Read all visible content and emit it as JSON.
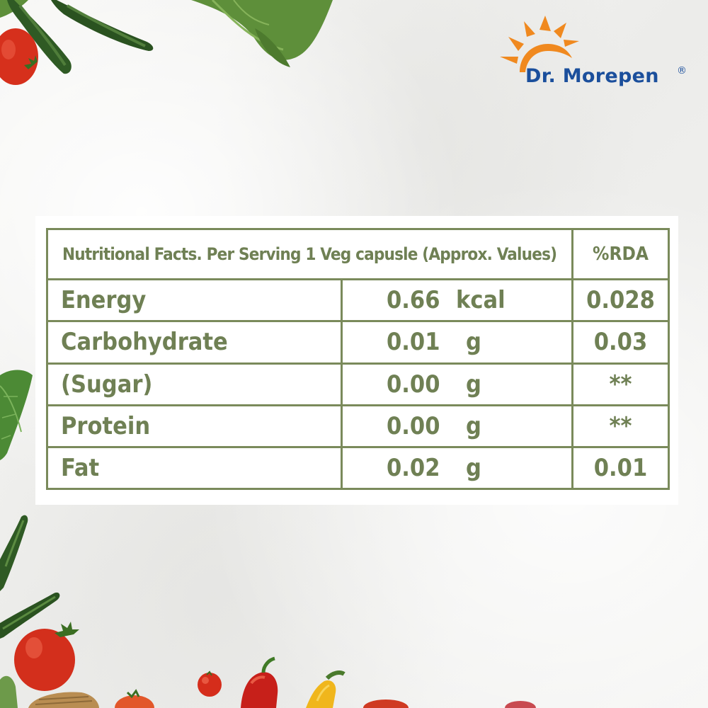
{
  "brand": {
    "name": "Dr. Morepen",
    "registered_mark": "®",
    "colors": {
      "blue": "#1b4f9c",
      "orange": "#f0891f"
    }
  },
  "table": {
    "header": {
      "title": "Nutritional Facts. Per Serving 1 Veg capusle (Approx. Values)",
      "rda_label": "%RDA"
    },
    "rows": [
      {
        "name": "Energy",
        "amount": "0.66",
        "unit": "kcal",
        "rda": "0.028"
      },
      {
        "name": "Carbohydrate",
        "amount": "0.01",
        "unit": "g",
        "rda": "0.03"
      },
      {
        "name": "(Sugar)",
        "amount": "0.00",
        "unit": "g",
        "rda": "**"
      },
      {
        "name": "Protein",
        "amount": "0.00",
        "unit": "g",
        "rda": "**"
      },
      {
        "name": "Fat",
        "amount": "0.02",
        "unit": "g",
        "rda": "0.01"
      }
    ],
    "colors": {
      "text": "#6f8054",
      "border": "#7a8a5b"
    }
  },
  "decorations": {
    "icons": [
      "zucchini-icon",
      "tomato-icon",
      "leaf-icon",
      "chili-pepper-icon",
      "yellow-squash-icon",
      "cherry-tomato-icon",
      "basket-icon"
    ]
  }
}
